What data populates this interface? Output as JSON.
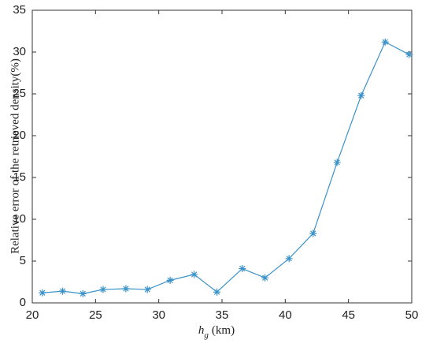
{
  "chart_data": {
    "type": "line",
    "x_label": {
      "symbol": "h",
      "subscript": "g",
      "unit": "(km)"
    },
    "y_label": "Relative error of the retrieved density(%)",
    "x": [
      20.8,
      22.4,
      24,
      25.6,
      27.4,
      29.1,
      30.9,
      32.8,
      34.6,
      36.6,
      38.4,
      40.3,
      42.2,
      44.1,
      46,
      47.9,
      49.8
    ],
    "series": [
      {
        "color": "#3a92c8",
        "values": [
          1.2,
          1.4,
          1.1,
          1.6,
          1.7,
          1.6,
          2.7,
          3.4,
          1.3,
          4.1,
          3.0,
          5.3,
          8.3,
          16.8,
          24.8,
          31.2,
          29.7
        ]
      }
    ],
    "xlim": [
      20,
      50
    ],
    "xticks": [
      20,
      25,
      30,
      35,
      40,
      45,
      50
    ],
    "ylim": [
      0,
      35
    ],
    "yticks": [
      0,
      5,
      10,
      15,
      20,
      25,
      30,
      35
    ]
  }
}
